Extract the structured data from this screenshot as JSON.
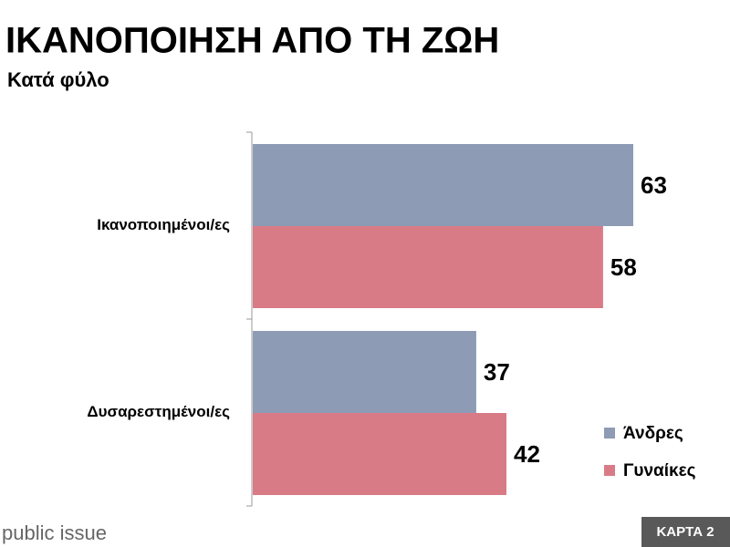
{
  "chart_data": {
    "type": "bar",
    "orientation": "horizontal",
    "title": "ΙΚΑΝΟΠΟΙΗΣΗ ΑΠΟ ΤΗ ΖΩΗ",
    "subtitle": "Κατά φύλο",
    "categories": [
      "Ικανοποιημένοι/ες",
      "Δυσαρεστημένοι/ες"
    ],
    "series": [
      {
        "name": "Άνδρες",
        "color": "#8e9bb5",
        "values": [
          63,
          37
        ]
      },
      {
        "name": "Γυναίκες",
        "color": "#d97b87",
        "values": [
          58,
          42
        ]
      }
    ],
    "legend": "right"
  },
  "footer": {
    "source": "public issue",
    "label": "ΚΑΡΤΑ 2"
  }
}
